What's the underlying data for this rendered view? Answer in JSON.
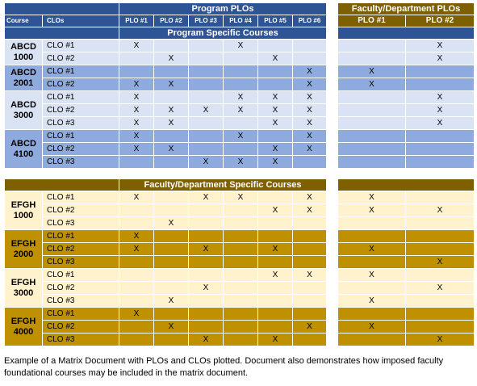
{
  "header": {
    "program_plos": "Program PLOs",
    "faculty_plos": "Faculty/Department PLOs",
    "course_col": "Course",
    "clos_col": "CLOs",
    "program_cols": [
      "PLO #1",
      "PLO #2",
      "PLO #3",
      "PLO #4",
      "PLO #5",
      "PLO #6"
    ],
    "faculty_cols": [
      "PLO #1",
      "PLO #2"
    ]
  },
  "sections": [
    {
      "title": "Program Specific Courses",
      "header_color": "#2e5496",
      "light_color": "#dae3f3",
      "dark_color": "#8faadc",
      "courses": [
        {
          "name": "ABCD\n1000",
          "shade": "light",
          "rows": [
            {
              "clo": "CLO #1",
              "program": [
                "X",
                "",
                "",
                "X",
                "",
                ""
              ],
              "faculty": [
                "",
                "X"
              ]
            },
            {
              "clo": "CLO #2",
              "program": [
                "",
                "X",
                "",
                "",
                "X",
                ""
              ],
              "faculty": [
                "",
                "X"
              ]
            }
          ]
        },
        {
          "name": "ABCD\n2001",
          "shade": "dark",
          "rows": [
            {
              "clo": "CLO #1",
              "program": [
                "",
                "",
                "",
                "",
                "",
                "X"
              ],
              "faculty": [
                "X",
                ""
              ]
            },
            {
              "clo": "CLO #2",
              "program": [
                "X",
                "X",
                "",
                "",
                "",
                "X"
              ],
              "faculty": [
                "X",
                ""
              ]
            }
          ]
        },
        {
          "name": "ABCD\n3000",
          "shade": "light",
          "rows": [
            {
              "clo": "CLO #1",
              "program": [
                "X",
                "",
                "",
                "X",
                "X",
                "X"
              ],
              "faculty": [
                "",
                "X"
              ]
            },
            {
              "clo": "CLO #2",
              "program": [
                "X",
                "X",
                "X",
                "X",
                "X",
                "X"
              ],
              "faculty": [
                "",
                "X"
              ]
            },
            {
              "clo": "CLO #3",
              "program": [
                "X",
                "X",
                "",
                "",
                "X",
                "X"
              ],
              "faculty": [
                "",
                "X"
              ]
            }
          ]
        },
        {
          "name": "ABCD\n4100",
          "shade": "dark",
          "rows": [
            {
              "clo": "CLO #1",
              "program": [
                "X",
                "",
                "",
                "X",
                "",
                "X"
              ],
              "faculty": [
                "",
                ""
              ]
            },
            {
              "clo": "CLO #2",
              "program": [
                "X",
                "X",
                "",
                "",
                "X",
                "X"
              ],
              "faculty": [
                "",
                ""
              ]
            },
            {
              "clo": "CLO #3",
              "program": [
                "",
                "",
                "X",
                "X",
                "X",
                ""
              ],
              "faculty": [
                "",
                ""
              ]
            }
          ]
        }
      ]
    },
    {
      "title": "Faculty/Department Specific Courses",
      "header_color": "#7f6000",
      "light_color": "#fff2cc",
      "dark_color": "#bf9000",
      "courses": [
        {
          "name": "EFGH\n1000",
          "shade": "light",
          "rows": [
            {
              "clo": "CLO #1",
              "program": [
                "X",
                "",
                "X",
                "X",
                "",
                "X"
              ],
              "faculty": [
                "X",
                ""
              ]
            },
            {
              "clo": "CLO #2",
              "program": [
                "",
                "",
                "",
                "",
                "X",
                "X"
              ],
              "faculty": [
                "X",
                "X"
              ]
            },
            {
              "clo": "CLO #3",
              "program": [
                "",
                "X",
                "",
                "",
                "",
                ""
              ],
              "faculty": [
                "",
                ""
              ]
            }
          ]
        },
        {
          "name": "EFGH\n2000",
          "shade": "dark",
          "rows": [
            {
              "clo": "CLO #1",
              "program": [
                "X",
                "",
                "",
                "",
                "",
                ""
              ],
              "faculty": [
                "",
                ""
              ]
            },
            {
              "clo": "CLO #2",
              "program": [
                "X",
                "",
                "X",
                "",
                "X",
                ""
              ],
              "faculty": [
                "X",
                ""
              ]
            },
            {
              "clo": "CLO #3",
              "program": [
                "",
                "",
                "",
                "",
                "",
                ""
              ],
              "faculty": [
                "",
                "X"
              ]
            }
          ]
        },
        {
          "name": "EFGH\n3000",
          "shade": "light",
          "rows": [
            {
              "clo": "CLO #1",
              "program": [
                "",
                "",
                "",
                "",
                "X",
                "X"
              ],
              "faculty": [
                "X",
                ""
              ]
            },
            {
              "clo": "CLO #2",
              "program": [
                "",
                "",
                "X",
                "",
                "",
                ""
              ],
              "faculty": [
                "",
                "X"
              ]
            },
            {
              "clo": "CLO #3",
              "program": [
                "",
                "X",
                "",
                "",
                "",
                ""
              ],
              "faculty": [
                "X",
                ""
              ]
            }
          ]
        },
        {
          "name": "EFGH\n4000",
          "shade": "dark",
          "rows": [
            {
              "clo": "CLO #1",
              "program": [
                "X",
                "",
                "",
                "",
                "",
                ""
              ],
              "faculty": [
                "",
                ""
              ]
            },
            {
              "clo": "CLO #2",
              "program": [
                "",
                "X",
                "",
                "",
                "",
                "X"
              ],
              "faculty": [
                "X",
                ""
              ]
            },
            {
              "clo": "CLO #3",
              "program": [
                "",
                "",
                "X",
                "",
                "X",
                ""
              ],
              "faculty": [
                "",
                "X"
              ]
            }
          ]
        }
      ]
    }
  ],
  "caption": "Example of a Matrix Document with PLOs and CLOs plotted. Document also demonstrates how imposed faculty foundational courses may be included in the matrix document."
}
